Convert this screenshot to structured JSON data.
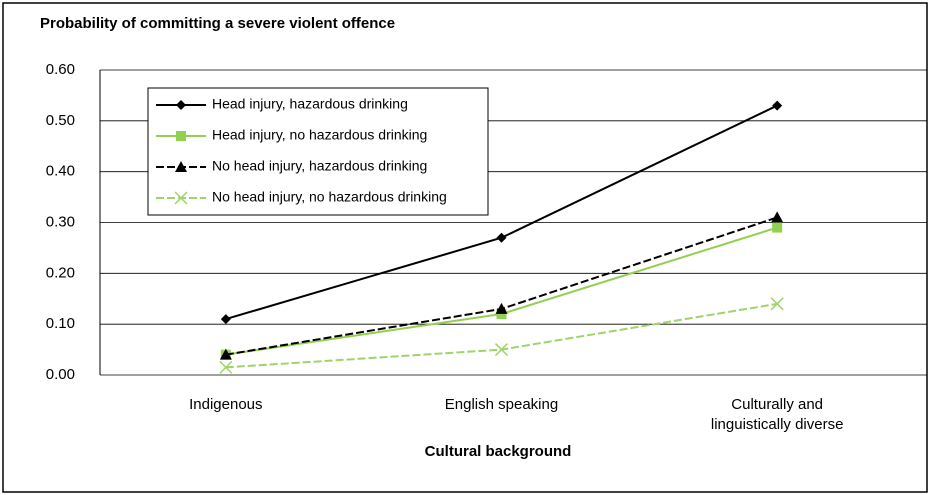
{
  "chart_data": {
    "type": "line",
    "title": "Probability of committing a severe violent offence",
    "x_label": "Cultural background",
    "categories": [
      "Indigenous",
      "English speaking",
      "Culturally and linguistically diverse"
    ],
    "series": [
      {
        "name": "Head injury, hazardous drinking",
        "color": "#000000",
        "marker": "diamond",
        "line_style": "solid",
        "values": [
          0.11,
          0.27,
          0.53
        ]
      },
      {
        "name": "Head injury, no hazardous drinking",
        "color": "#92d050",
        "marker": "square",
        "line_style": "solid",
        "values": [
          0.04,
          0.12,
          0.29
        ]
      },
      {
        "name": "No head injury, hazardous drinking",
        "color": "#000000",
        "marker": "triangle",
        "line_style": "dashed",
        "values": [
          0.04,
          0.13,
          0.31
        ]
      },
      {
        "name": "No head injury, no hazardous drinking",
        "color": "#9fd46a",
        "marker": "x",
        "line_style": "dashed",
        "values": [
          0.015,
          0.05,
          0.14
        ]
      }
    ],
    "ylim": [
      0,
      0.6
    ],
    "yticks": [
      {
        "value": 0,
        "label": "0.00"
      },
      {
        "value": 0.1,
        "label": "0.10"
      },
      {
        "value": 0.2,
        "label": "0.20"
      },
      {
        "value": 0.3,
        "label": "0.30"
      },
      {
        "value": 0.4,
        "label": "0.40"
      },
      {
        "value": 0.5,
        "label": "0.50"
      },
      {
        "value": 0.6,
        "label": "0.60"
      }
    ],
    "grid": true,
    "legend": "upper left"
  }
}
